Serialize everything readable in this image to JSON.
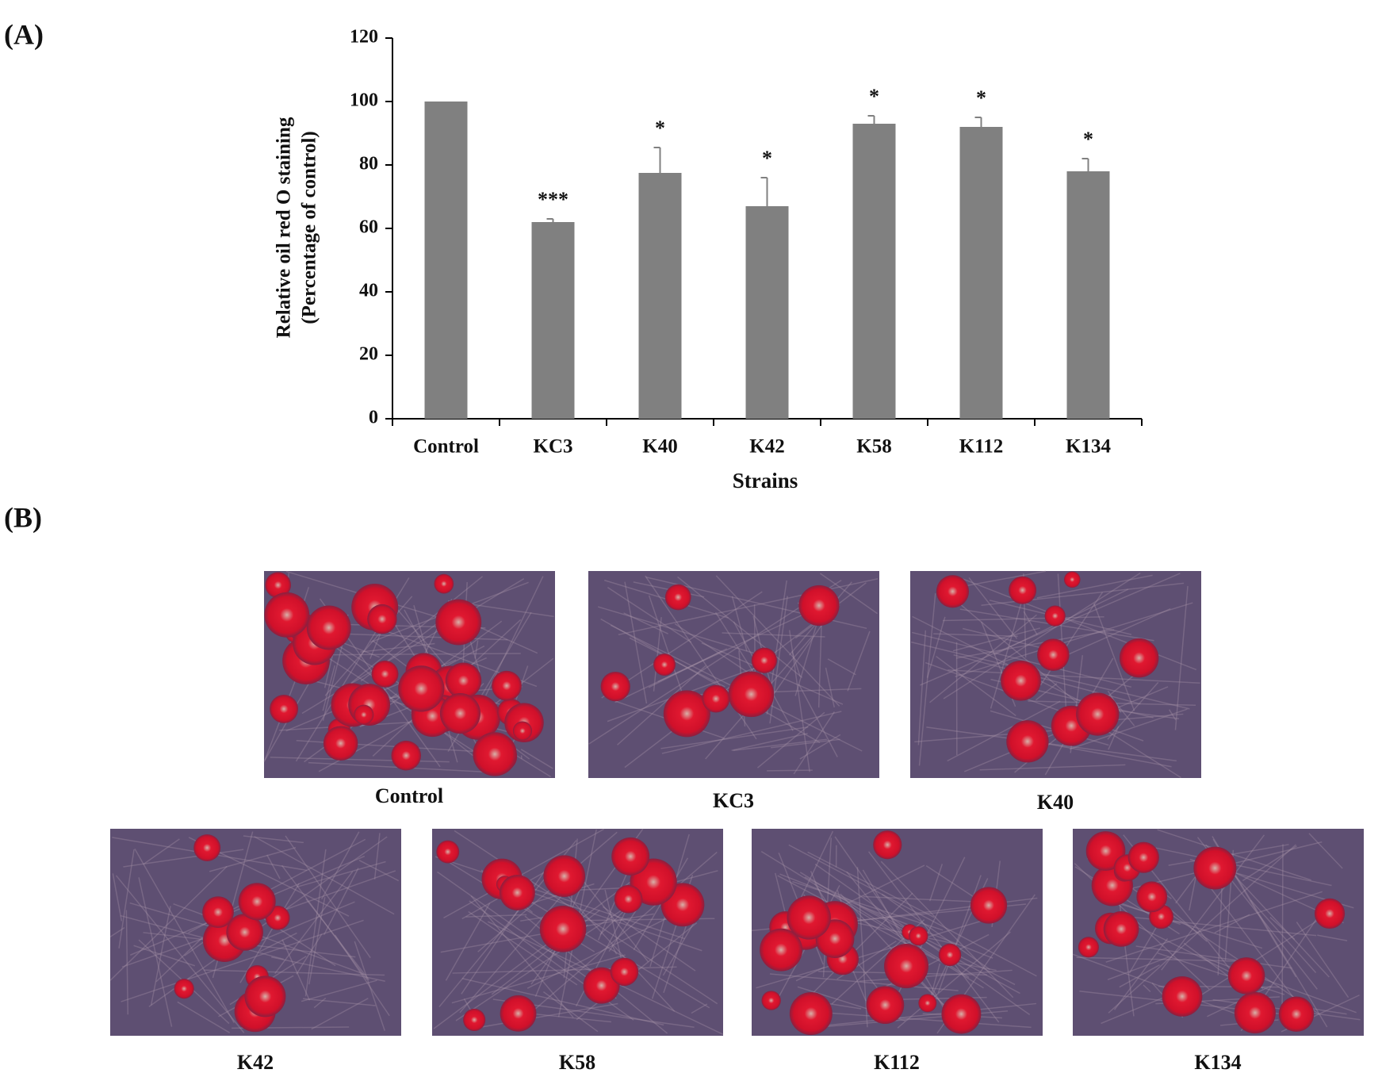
{
  "panels": {
    "a": "(A)",
    "b": "(B)"
  },
  "chart_data": {
    "type": "bar",
    "y_label": [
      "Relative oil red O staining",
      "(Percentage of control)"
    ],
    "x_label": "Strains",
    "categories": [
      "Control",
      "KC3",
      "K40",
      "K42",
      "K58",
      "K112",
      "K134"
    ],
    "values": [
      100,
      62,
      77.5,
      67,
      93,
      92,
      78
    ],
    "errors": [
      0,
      1,
      8,
      9,
      2.5,
      3,
      4
    ],
    "significance": [
      null,
      "***",
      "*",
      "*",
      "*",
      "*",
      "*"
    ],
    "color": "#808080",
    "ylim": [
      0,
      120
    ],
    "yticks": [
      0,
      20,
      40,
      60,
      80,
      100,
      120
    ]
  },
  "images": {
    "captions": [
      "Control",
      "KC3",
      "K40",
      "K42",
      "K58",
      "K112",
      "K134"
    ]
  }
}
